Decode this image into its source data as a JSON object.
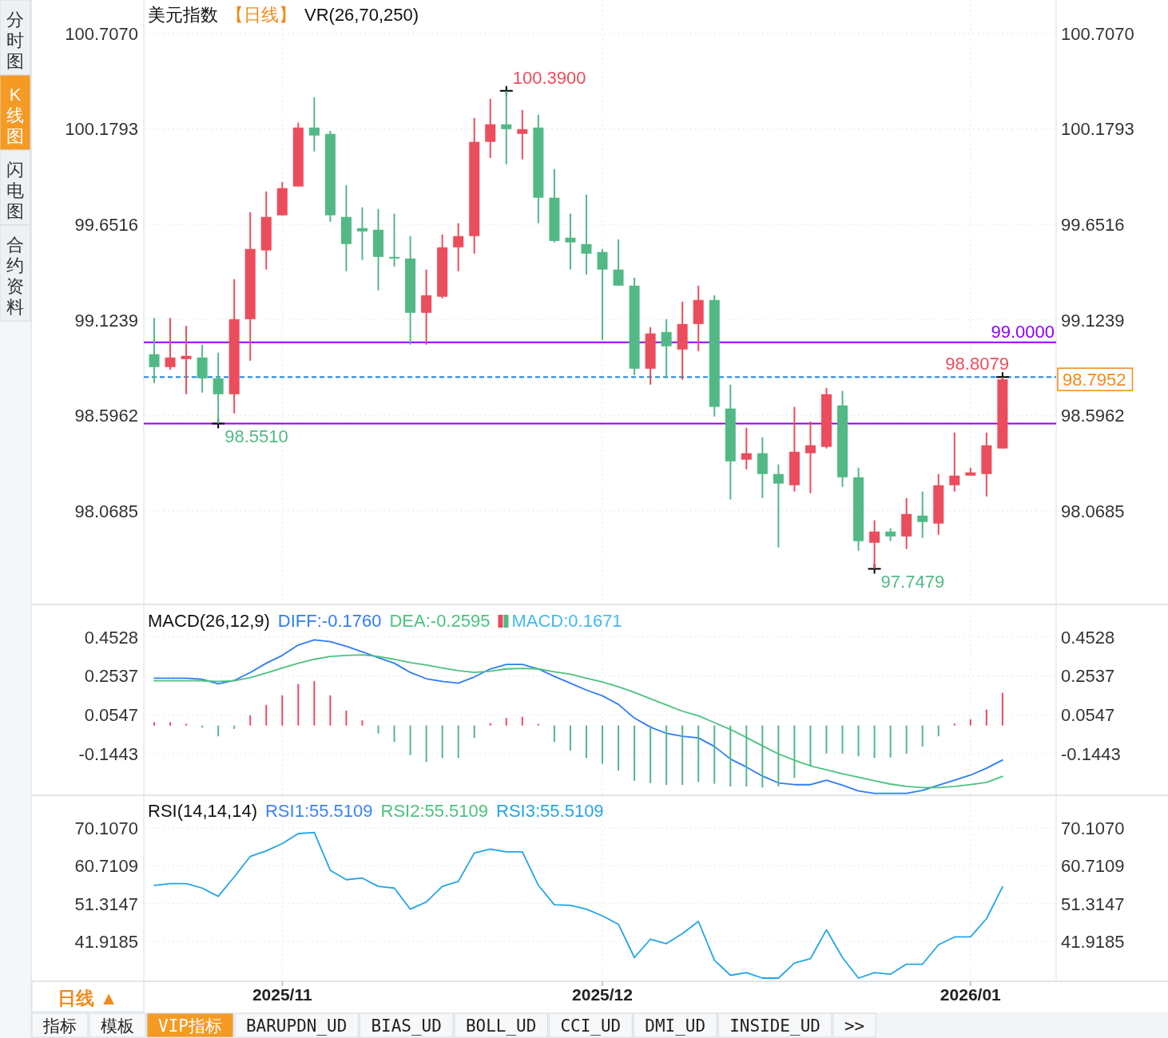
{
  "chart_data": [
    {
      "type": "candlestick",
      "title": "美元指数",
      "subtitle": "【日线】",
      "annotations": [
        "VR(26,70,250)",
        "100.3900",
        {
          "text": "98.5510",
          "y": 98.551
        },
        "97.7479",
        {
          "text": "98.8079",
          "y": 98.8079
        },
        "98.7952"
      ],
      "categories": [
        null,
        null,
        null,
        null,
        null,
        null,
        null,
        null,
        "2025/11",
        null,
        null,
        null,
        null,
        null,
        null,
        null,
        null,
        null,
        null,
        null,
        null,
        null,
        null,
        null,
        null,
        null,
        null,
        null,
        "2025/12",
        null,
        null,
        null,
        null,
        null,
        null,
        null,
        null,
        null,
        null,
        null,
        null,
        null,
        null,
        null,
        null,
        null,
        null,
        null,
        null,
        null,
        null,
        "2026/01",
        null,
        null
      ],
      "ohlc": [
        [
          98.934,
          99.135,
          98.775,
          98.863
        ],
        [
          98.863,
          99.135,
          98.848,
          98.916
        ],
        [
          98.907,
          99.091,
          98.713,
          98.925
        ],
        [
          98.916,
          98.987,
          98.722,
          98.801
        ],
        [
          98.801,
          98.943,
          98.551,
          98.713
        ],
        [
          98.713,
          99.349,
          98.607,
          99.128
        ],
        [
          99.128,
          99.719,
          98.898,
          99.516
        ],
        [
          99.508,
          99.834,
          99.402,
          99.693
        ],
        [
          99.702,
          99.887,
          99.702,
          99.852
        ],
        [
          99.861,
          100.214,
          99.861,
          100.187
        ],
        [
          100.187,
          100.355,
          100.055,
          100.143
        ],
        [
          100.152,
          100.169,
          99.666,
          99.702
        ],
        [
          99.693,
          99.869,
          99.393,
          99.543
        ],
        [
          99.631,
          99.746,
          99.455,
          99.613
        ],
        [
          99.622,
          99.737,
          99.287,
          99.472
        ],
        [
          99.472,
          99.711,
          99.419,
          99.463
        ],
        [
          99.463,
          99.587,
          98.987,
          99.163
        ],
        [
          99.163,
          99.402,
          98.987,
          99.26
        ],
        [
          99.252,
          99.596,
          99.243,
          99.525
        ],
        [
          99.525,
          99.658,
          99.393,
          99.587
        ],
        [
          99.587,
          100.24,
          99.49,
          100.108
        ],
        [
          100.108,
          100.346,
          100.019,
          100.205
        ],
        [
          100.205,
          100.39,
          99.984,
          100.178
        ],
        [
          100.152,
          100.284,
          100.011,
          100.178
        ],
        [
          100.187,
          100.258,
          99.658,
          99.799
        ],
        [
          99.799,
          99.958,
          99.552,
          99.56
        ],
        [
          99.578,
          99.711,
          99.402,
          99.552
        ],
        [
          99.543,
          99.816,
          99.375,
          99.49
        ],
        [
          99.499,
          99.516,
          99.013,
          99.402
        ],
        [
          99.402,
          99.569,
          99.313,
          99.313
        ],
        [
          99.313,
          99.357,
          98.819,
          98.854
        ],
        [
          98.854,
          99.084,
          98.766,
          99.049
        ],
        [
          99.057,
          99.128,
          98.801,
          98.978
        ],
        [
          98.96,
          99.225,
          98.793,
          99.101
        ],
        [
          99.101,
          99.313,
          98.951,
          99.234
        ],
        [
          99.234,
          99.26,
          98.59,
          98.643
        ],
        [
          98.634,
          98.766,
          98.131,
          98.342
        ],
        [
          98.351,
          98.528,
          98.298,
          98.387
        ],
        [
          98.387,
          98.475,
          98.139,
          98.272
        ],
        [
          98.272,
          98.325,
          97.866,
          98.219
        ],
        [
          98.21,
          98.643,
          98.175,
          98.395
        ],
        [
          98.387,
          98.563,
          98.166,
          98.431
        ],
        [
          98.422,
          98.748,
          98.413,
          98.713
        ],
        [
          98.651,
          98.731,
          98.201,
          98.254
        ],
        [
          98.254,
          98.307,
          97.848,
          97.901
        ],
        [
          97.892,
          98.016,
          97.7479,
          97.954
        ],
        [
          97.954,
          97.972,
          97.901,
          97.927
        ],
        [
          97.927,
          98.139,
          97.857,
          98.051
        ],
        [
          98.042,
          98.175,
          97.919,
          98.007
        ],
        [
          97.998,
          98.272,
          97.936,
          98.21
        ],
        [
          98.21,
          98.501,
          98.175,
          98.263
        ],
        [
          98.263,
          98.307,
          98.263,
          98.281
        ],
        [
          98.272,
          98.501,
          98.148,
          98.431
        ],
        [
          98.413,
          98.8079,
          98.413,
          98.7952
        ]
      ],
      "ylim": [
        97.56,
        100.892
      ],
      "yticks": [
        {
          "value": 100.707,
          "label": "100.7070"
        },
        100.1793,
        99.6516,
        99.1239,
        98.5962,
        98.0685
      ],
      "y2lim": [
        97.56,
        100.892
      ],
      "y2ticks": [
        {
          "value": 100.707,
          "label": "100.7070"
        },
        100.1793,
        99.6516,
        99.1239,
        98.5962,
        98.0685
      ],
      "ref_lines": [
        {
          "axis": "y",
          "value": 99.0,
          "label": "99.0000",
          "color": "#8b00ff"
        },
        {
          "axis": "y",
          "value": 98.551,
          "color": "#8b00ff"
        },
        {
          "axis": "y",
          "value": 98.8079,
          "color": "#1e88e5",
          "line_style": "dashed"
        }
      ],
      "grid": true,
      "tick_labels": "y"
    },
    {
      "type": "line",
      "title": "MACD(26,12,9)",
      "categories": [
        null,
        null,
        null,
        null,
        null,
        null,
        null,
        null,
        "2025/11",
        null,
        null,
        null,
        null,
        null,
        null,
        null,
        null,
        null,
        null,
        null,
        null,
        null,
        null,
        null,
        null,
        null,
        null,
        null,
        "2025/12",
        null,
        null,
        null,
        null,
        null,
        null,
        null,
        null,
        null,
        null,
        null,
        null,
        null,
        null,
        null,
        null,
        null,
        null,
        null,
        null,
        null,
        null,
        "2026/01",
        null,
        null
      ],
      "series": [
        {
          "name": "DIFF:-0.1760",
          "color": "#2f7cf6",
          "values": [
            0.242,
            0.242,
            0.242,
            0.236,
            0.213,
            0.23,
            0.271,
            0.318,
            0.358,
            0.411,
            0.437,
            0.428,
            0.405,
            0.376,
            0.347,
            0.318,
            0.271,
            0.239,
            0.225,
            0.216,
            0.248,
            0.289,
            0.312,
            0.312,
            0.289,
            0.251,
            0.216,
            0.181,
            0.152,
            0.108,
            0.038,
            -0.008,
            -0.04,
            -0.055,
            -0.063,
            -0.107,
            -0.171,
            -0.212,
            -0.258,
            -0.293,
            -0.302,
            -0.302,
            -0.279,
            -0.305,
            -0.334,
            -0.346,
            -0.346,
            -0.346,
            -0.331,
            -0.305,
            -0.279,
            -0.253,
            -0.218,
            -0.176
          ]
        },
        {
          "name": "DEA:-0.2595",
          "color": "#4cc27e",
          "values": [
            0.228,
            0.228,
            0.228,
            0.228,
            0.225,
            0.228,
            0.245,
            0.268,
            0.294,
            0.318,
            0.338,
            0.353,
            0.358,
            0.361,
            0.353,
            0.338,
            0.321,
            0.309,
            0.294,
            0.28,
            0.271,
            0.277,
            0.289,
            0.292,
            0.289,
            0.274,
            0.262,
            0.242,
            0.222,
            0.198,
            0.169,
            0.137,
            0.105,
            0.073,
            0.05,
            0.015,
            -0.02,
            -0.061,
            -0.104,
            -0.145,
            -0.177,
            -0.206,
            -0.226,
            -0.247,
            -0.264,
            -0.282,
            -0.299,
            -0.311,
            -0.317,
            -0.317,
            -0.311,
            -0.302,
            -0.29,
            -0.2595
          ]
        },
        {
          "name": "MACD:0.1671",
          "type": "bar",
          "color": "#44b9f2",
          "values": [
            0.017,
            0.017,
            0.009,
            -0.01,
            -0.055,
            -0.017,
            0.052,
            0.105,
            0.154,
            0.212,
            0.227,
            0.154,
            0.076,
            0.026,
            -0.041,
            -0.084,
            -0.151,
            -0.186,
            -0.166,
            -0.166,
            -0.064,
            0.012,
            0.038,
            0.044,
            0.008,
            -0.084,
            -0.128,
            -0.166,
            -0.195,
            -0.23,
            -0.282,
            -0.294,
            -0.303,
            -0.303,
            -0.288,
            -0.297,
            -0.311,
            -0.311,
            -0.317,
            -0.311,
            -0.268,
            -0.209,
            -0.143,
            -0.143,
            -0.157,
            -0.166,
            -0.163,
            -0.143,
            -0.108,
            -0.055,
            0.01,
            0.032,
            0.081,
            0.1671
          ],
          "colors": [
            "#e84a5f",
            "#e84a5f",
            "#e84a5f",
            "#52b986",
            "#52b986",
            "#52b986",
            "#e84a5f",
            "#e84a5f",
            "#e84a5f",
            "#e84a5f",
            "#e84a5f",
            "#e84a5f",
            "#e84a5f",
            "#e84a5f",
            "#52b986",
            "#52b986",
            "#52b986",
            "#52b986",
            "#52b986",
            "#52b986",
            "#52b986",
            "#e84a5f",
            "#e84a5f",
            "#e84a5f",
            "#e84a5f",
            "#52b986",
            "#52b986",
            "#52b986",
            "#52b986",
            "#52b986",
            "#52b986",
            "#52b986",
            "#52b986",
            "#52b986",
            "#52b986",
            "#52b986",
            "#52b986",
            "#52b986",
            "#52b986",
            "#52b986",
            "#52b986",
            "#52b986",
            "#52b986",
            "#52b986",
            "#52b986",
            "#52b986",
            "#52b986",
            "#52b986",
            "#52b986",
            "#52b986",
            "#e84a5f",
            "#e84a5f",
            "#e84a5f",
            "#e84a5f"
          ]
        }
      ],
      "ylim": [
        -0.352,
        0.606
      ],
      "yticks": [
        0.4528,
        0.2537,
        0.0547,
        -0.1443
      ],
      "y2lim": [
        -0.352,
        0.606
      ],
      "y2ticks": [
        0.4528,
        0.2537,
        0.0547,
        -0.1443
      ],
      "grid": true,
      "legend": "top left",
      "tick_labels": "y"
    },
    {
      "type": "line",
      "title": "RSI(14,14,14)",
      "categories": [
        null,
        null,
        null,
        null,
        null,
        null,
        null,
        null,
        "2025/11",
        null,
        null,
        null,
        null,
        null,
        null,
        null,
        null,
        null,
        null,
        null,
        null,
        null,
        null,
        null,
        null,
        null,
        null,
        null,
        "2025/12",
        null,
        null,
        null,
        null,
        null,
        null,
        null,
        null,
        null,
        null,
        null,
        null,
        null,
        null,
        null,
        null,
        null,
        null,
        null,
        null,
        null,
        null,
        "2026/01",
        null,
        null
      ],
      "series": [
        {
          "name": "RSI1:55.5109",
          "color": "#3b82f6",
          "values": [
            null,
            null,
            null,
            null,
            null,
            null,
            null,
            null,
            null,
            null,
            null,
            null,
            null,
            null,
            null,
            null,
            null,
            null,
            null,
            null,
            null,
            null,
            null,
            null,
            null,
            null,
            null,
            null,
            null,
            null,
            null,
            null,
            null,
            null,
            null,
            null,
            null,
            null,
            null,
            null,
            null,
            null,
            null,
            null,
            null,
            null,
            null,
            null,
            null,
            null,
            null,
            null,
            null,
            null
          ]
        },
        {
          "name": "RSI2:55.5109",
          "color": "#4cc27e",
          "values": [
            null,
            null,
            null,
            null,
            null,
            null,
            null,
            null,
            null,
            null,
            null,
            null,
            null,
            null,
            null,
            null,
            null,
            null,
            null,
            null,
            null,
            null,
            null,
            null,
            null,
            null,
            null,
            null,
            null,
            null,
            null,
            null,
            null,
            null,
            null,
            null,
            null,
            null,
            null,
            null,
            null,
            null,
            null,
            null,
            null,
            null,
            null,
            null,
            null,
            null,
            null,
            null,
            null,
            null
          ]
        },
        {
          "name": "RSI3:55.5109",
          "color": "#22a5e6",
          "values": [
            55.87,
            56.29,
            56.29,
            55.18,
            53.11,
            57.95,
            63.06,
            64.44,
            66.24,
            68.73,
            69.0,
            59.61,
            57.26,
            57.67,
            55.6,
            55.18,
            49.93,
            51.73,
            55.6,
            56.84,
            63.89,
            64.86,
            64.17,
            64.17,
            55.87,
            51.04,
            50.9,
            49.93,
            48.28,
            46.2,
            37.91,
            42.47,
            41.37,
            43.85,
            46.89,
            37.22,
            33.49,
            34.18,
            32.8,
            32.8,
            36.53,
            37.63,
            44.82,
            37.91,
            32.8,
            34.18,
            33.77,
            36.26,
            36.26,
            41.09,
            43.03,
            43.03,
            47.59,
            55.5109
          ]
        }
      ],
      "ylim": [
        32.2,
        78.06
      ],
      "yticks": [
        {
          "value": 70.107,
          "label": "70.1070"
        },
        60.7109,
        51.3147,
        41.9185
      ],
      "y2lim": [
        32.2,
        78.06
      ],
      "y2ticks": [
        {
          "value": 70.107,
          "label": "70.1070"
        },
        60.7109,
        51.3147,
        41.9185
      ],
      "grid": true,
      "legend": "top left"
    },
    {
      "type": "other",
      "annotations": [
        "分时图",
        "K线图",
        "闪电图",
        "合约资料",
        "日线 ▲",
        "指标",
        "模板",
        "VIP指标",
        "BARUPDN_UD",
        "BIAS_UD",
        "BOLL_UD",
        "CCI_UD",
        "DMI_UD",
        "INSIDE_UD",
        ">>"
      ]
    }
  ]
}
